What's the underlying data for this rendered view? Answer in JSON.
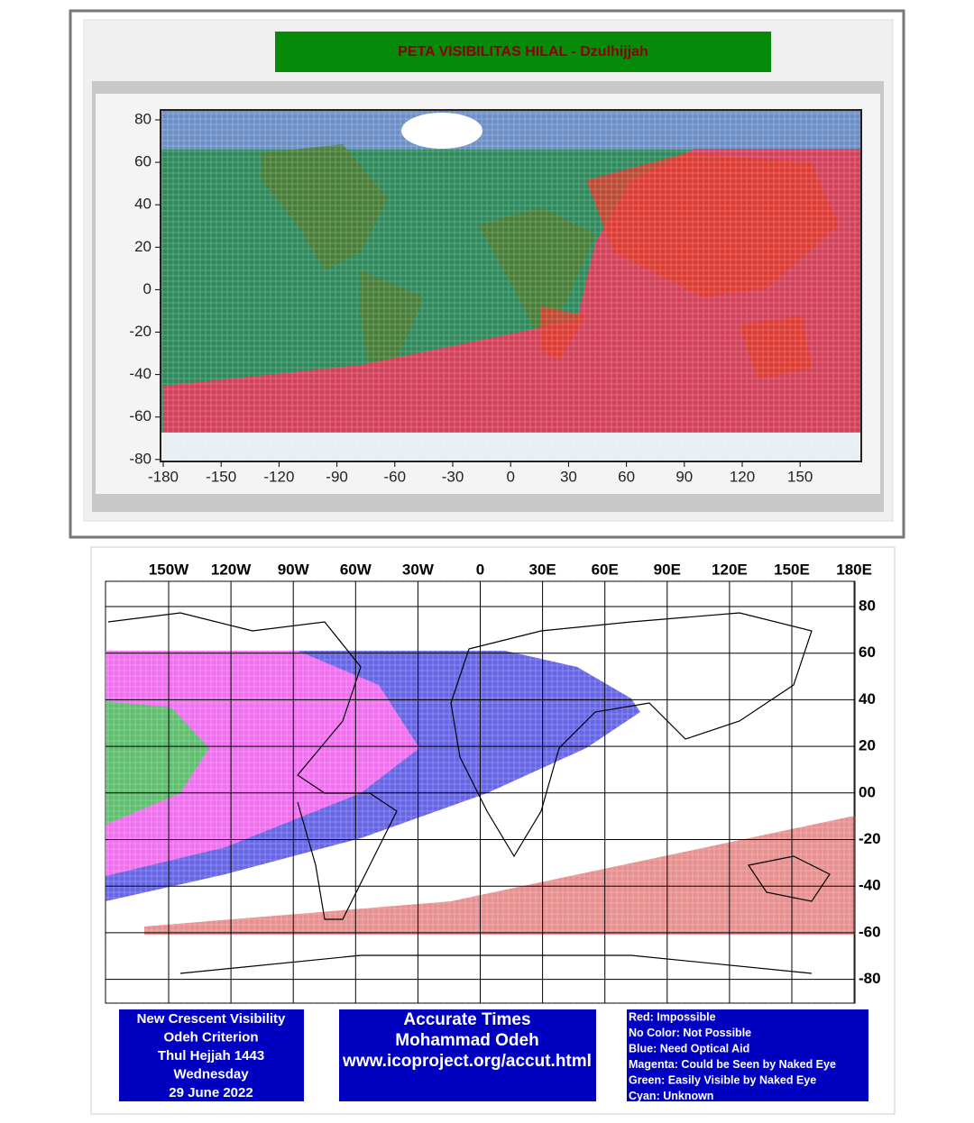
{
  "map_top": {
    "title": "PETA VISIBILITAS HILAL - Dzulhijjah",
    "yticks": [
      80,
      60,
      40,
      20,
      0,
      -20,
      -40,
      -60,
      -80
    ],
    "xticks": [
      -180,
      -150,
      -120,
      -90,
      -60,
      -30,
      0,
      30,
      60,
      90,
      120,
      150
    ]
  },
  "map_bottom": {
    "lon_labels": [
      "150W",
      "120W",
      "90W",
      "60W",
      "30W",
      "0",
      "30E",
      "60E",
      "90E",
      "120E",
      "150E",
      "180E"
    ],
    "lat_labels": [
      "80",
      "60",
      "40",
      "20",
      "00",
      "-20",
      "-40",
      "-60",
      "-80"
    ],
    "info_box": [
      "New Crescent Visibility",
      "Odeh Criterion",
      "Thul Hejjah 1443",
      "Wednesday",
      "29 June 2022"
    ],
    "credit_box": [
      "Accurate Times",
      "Mohammad Odeh",
      "www.icoproject.org/accut.html"
    ],
    "legend_box": [
      "Red: Impossible",
      "No Color: Not Possible",
      "Blue: Need Optical Aid",
      "Magenta: Could be Seen by Naked Eye",
      "Green: Easily Visible by Naked Eye",
      "Cyan: Unknown"
    ]
  }
}
